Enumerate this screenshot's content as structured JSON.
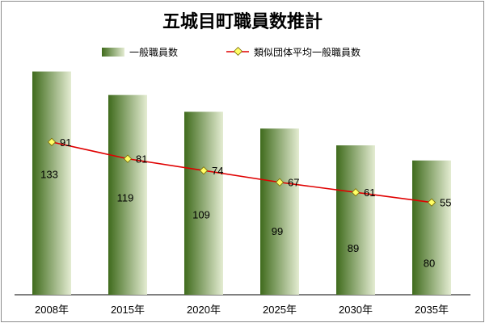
{
  "chart_data": {
    "type": "bar",
    "title": "五城目町職員数推計",
    "categories": [
      "2008年",
      "2015年",
      "2020年",
      "2025年",
      "2030年",
      "2035年"
    ],
    "series": [
      {
        "name": "一般職員数",
        "type": "bar",
        "values": [
          133,
          119,
          109,
          99,
          89,
          80
        ]
      },
      {
        "name": "類似団体平均一般職員数",
        "type": "line",
        "values": [
          91,
          81,
          74,
          67,
          61,
          55
        ]
      }
    ],
    "ylim": [
      0,
      140
    ],
    "grid": false,
    "legend_position": "top",
    "colors": {
      "bar_dark": "#3f6b1c",
      "bar_light": "#e4ecd2",
      "line": "#e00000",
      "marker": "#ffff66",
      "axis": "#000000"
    }
  }
}
